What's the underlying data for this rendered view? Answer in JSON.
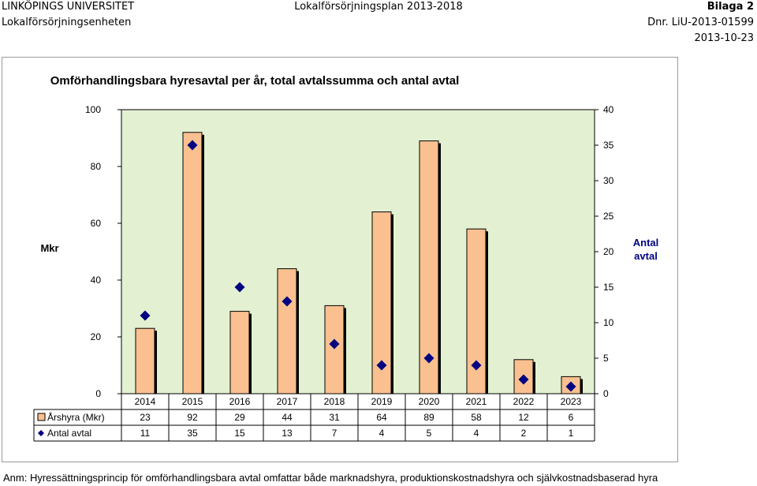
{
  "header": {
    "org": "LINKÖPINGS UNIVERSITET",
    "unit": "Lokalförsörjningsenheten",
    "document": "Lokalförsörjningsplan 2013-2018",
    "annex": "Bilaga 2",
    "dnr": "Dnr. LiU-2013-01599",
    "date": "2013-10-23"
  },
  "colors": {
    "plot_background": "#e3f1d2",
    "bar_fill": "#fac090",
    "marker": "#000080"
  },
  "chart_data": {
    "type": "bar",
    "title": "Omförhandlingsbara hyresavtal per år, total avtalssumma och antal avtal",
    "ylabel": "Mkr",
    "y2label_line1": "Antal",
    "y2label_line2": "avtal",
    "ylim": [
      0,
      100
    ],
    "y2lim": [
      0,
      40
    ],
    "yticks": [
      "0",
      "20",
      "40",
      "60",
      "80",
      "100"
    ],
    "y2ticks": [
      "0",
      "5",
      "10",
      "15",
      "20",
      "25",
      "30",
      "35",
      "40"
    ],
    "categories": [
      "2014",
      "2015",
      "2016",
      "2017",
      "2018",
      "2019",
      "2020",
      "2021",
      "2022",
      "2023"
    ],
    "series": [
      {
        "name": "Årshyra (Mkr)",
        "type": "bar",
        "axis": "left",
        "values": [
          23,
          92,
          29,
          44,
          31,
          64,
          89,
          58,
          12,
          6
        ],
        "labels": [
          "23",
          "92",
          "29",
          "44",
          "31",
          "64",
          "89",
          "58",
          "12",
          "6"
        ]
      },
      {
        "name": "Antal avtal",
        "type": "marker",
        "axis": "right",
        "values": [
          11,
          35,
          15,
          13,
          7,
          4,
          5,
          4,
          2,
          1
        ],
        "labels": [
          "11",
          "35",
          "15",
          "13",
          "7",
          "4",
          "5",
          "4",
          "2",
          "1"
        ]
      }
    ],
    "grid": false,
    "legend": "data table below plot"
  },
  "footnote": "Anm: Hyressättningsprincip för omförhandlingsbara avtal omfattar både marknadshyra, produktionskostnadshyra och självkostnadsbaserad hyra"
}
